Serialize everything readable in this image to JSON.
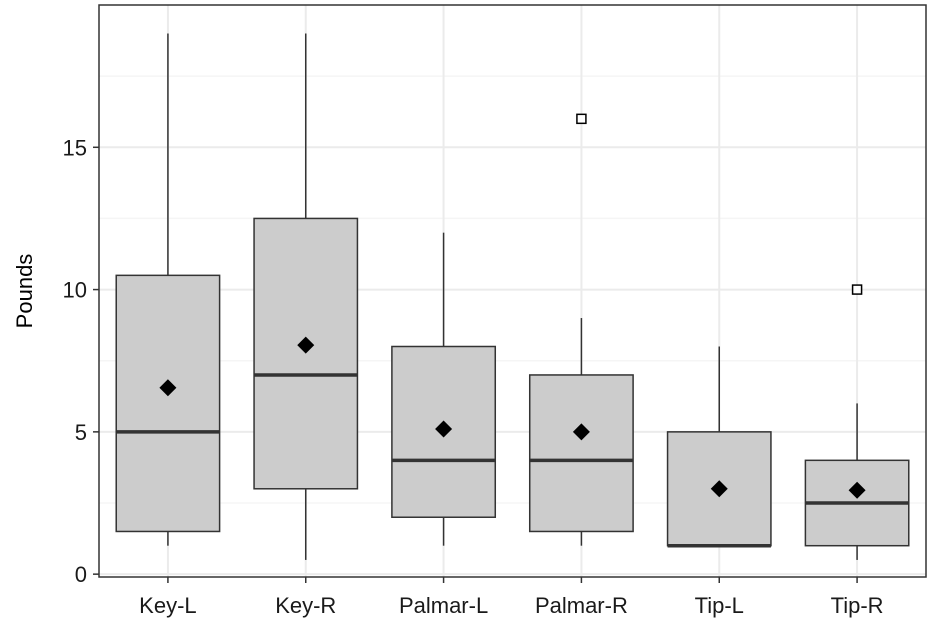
{
  "chart_data": {
    "type": "boxplot",
    "title": "",
    "xlabel": "",
    "ylabel": "Pounds",
    "categories": [
      "Key-L",
      "Key-R",
      "Palmar-L",
      "Palmar-R",
      "Tip-L",
      "Tip-R"
    ],
    "boxes": [
      {
        "category": "Key-L",
        "min": 1,
        "q1": 1.5,
        "median": 5,
        "q3": 10.5,
        "max": 19,
        "mean": 6.55,
        "outliers": []
      },
      {
        "category": "Key-R",
        "min": 0.5,
        "q1": 3,
        "median": 7,
        "q3": 12.5,
        "max": 19,
        "mean": 8.05,
        "outliers": []
      },
      {
        "category": "Palmar-L",
        "min": 1,
        "q1": 2,
        "median": 4,
        "q3": 8,
        "max": 12,
        "mean": 5.1,
        "outliers": []
      },
      {
        "category": "Palmar-R",
        "min": 1,
        "q1": 1.5,
        "median": 4,
        "q3": 7,
        "max": 9,
        "mean": 5,
        "outliers": [
          16
        ]
      },
      {
        "category": "Tip-L",
        "min": 1,
        "q1": 1,
        "median": 1,
        "q3": 5,
        "max": 8,
        "mean": 3,
        "outliers": []
      },
      {
        "category": "Tip-R",
        "min": 0.5,
        "q1": 1,
        "median": 2.5,
        "q3": 4,
        "max": 6,
        "mean": 2.95,
        "outliers": [
          10
        ]
      }
    ],
    "ylim": [
      -0.1,
      20
    ],
    "yticks": [
      0,
      5,
      10,
      15
    ],
    "grid": true,
    "legend": "none",
    "colors": {
      "box_fill": "#cccccc",
      "box_stroke": "#333333",
      "grid": "#ebebeb",
      "panel_border": "#333333",
      "mean_marker": "#000000"
    }
  }
}
